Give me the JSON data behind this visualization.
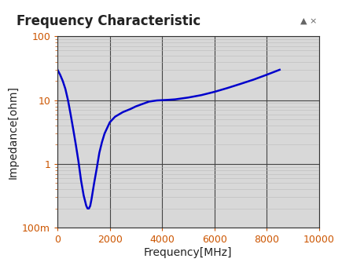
{
  "title": "Frequency Characteristic",
  "title_bg_color": "#9ee8e8",
  "xlabel": "Frequency[MHz]",
  "ylabel": "Impedance[ohm]",
  "xlim": [
    0,
    10000
  ],
  "ylim": [
    0.1,
    100
  ],
  "xticks": [
    0,
    2000,
    4000,
    6000,
    8000,
    10000
  ],
  "ytick_labels": [
    "100m",
    "1",
    "10",
    "100"
  ],
  "ytick_values": [
    0.1,
    1,
    10,
    100
  ],
  "line_color": "#0000cc",
  "plot_bg_color": "#d8d8d8",
  "outer_bg_color": "#ffffff",
  "curve_x": [
    0,
    100,
    200,
    300,
    400,
    500,
    600,
    700,
    800,
    900,
    1000,
    1100,
    1150,
    1200,
    1250,
    1300,
    1400,
    1500,
    1600,
    1700,
    1800,
    2000,
    2200,
    2500,
    2800,
    3000,
    3500,
    3800,
    4000,
    4200,
    4500,
    5000,
    5500,
    6000,
    6500,
    7000,
    7500,
    8000,
    8500
  ],
  "curve_y": [
    30,
    25,
    20,
    15,
    10,
    6,
    3.5,
    2.0,
    1.1,
    0.55,
    0.32,
    0.22,
    0.2,
    0.2,
    0.22,
    0.28,
    0.5,
    0.85,
    1.5,
    2.2,
    3.0,
    4.5,
    5.5,
    6.5,
    7.3,
    8.0,
    9.5,
    9.9,
    10.0,
    10.1,
    10.3,
    11.0,
    12.0,
    13.5,
    15.5,
    18.0,
    21.0,
    25.0,
    30.0
  ],
  "grid_major_color": "#444444",
  "grid_minor_color": "#bbbbbb",
  "title_fontsize": 12,
  "axis_label_fontsize": 10,
  "tick_fontsize": 9,
  "tick_label_color": "#cc5500"
}
